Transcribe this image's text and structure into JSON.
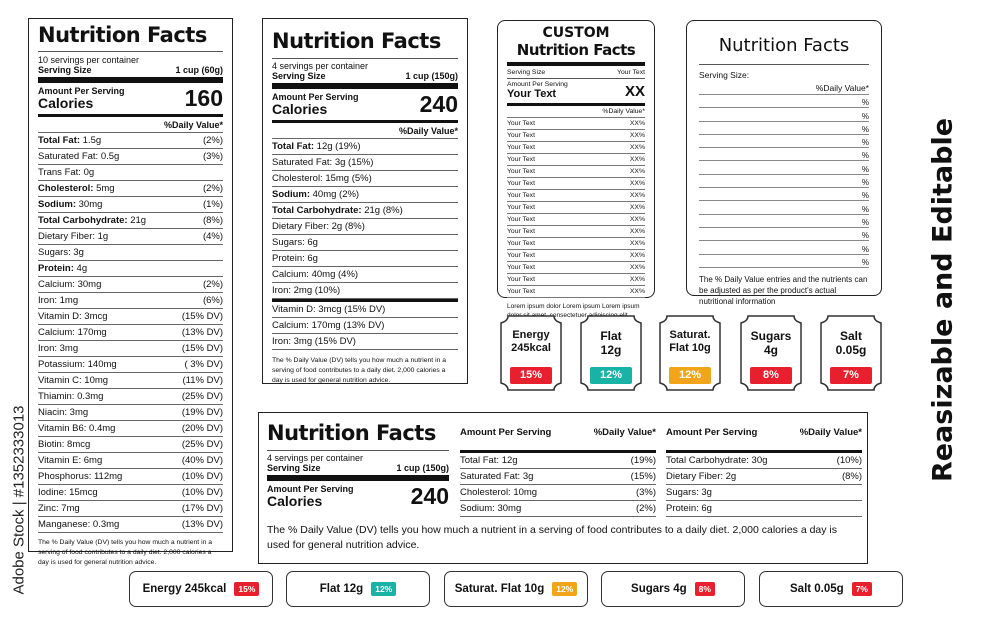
{
  "colors": {
    "red": "#e8202e",
    "teal": "#19b2a6",
    "amber": "#f2a51a"
  },
  "label1": {
    "title": "Nutrition Facts",
    "servings": "10 servings per container",
    "serving_size_label": "Serving Size",
    "serving_size_value": "1 cup (60g)",
    "amount_per_serving": "Amount Per Serving",
    "calories_label": "Calories",
    "calories_value": "160",
    "daily_value_header": "%Daily Value*",
    "rows": [
      {
        "bold": "Total Fat:",
        "text": " 1.5g",
        "dv": "(2%)"
      },
      {
        "bold": "",
        "text": "Saturated Fat: 0.5g",
        "dv": "(3%)"
      },
      {
        "bold": "",
        "text": "Trans Fat: 0g",
        "dv": ""
      },
      {
        "bold": "Cholesterol:",
        "text": " 5mg",
        "dv": "(2%)"
      },
      {
        "bold": "Sodium:",
        "text": " 30mg",
        "dv": "(1%)"
      },
      {
        "bold": "Total Carbohydrate:",
        "text": " 21g",
        "dv": "(8%)"
      },
      {
        "bold": "",
        "text": "Dietary Fiber: 1g",
        "dv": "(4%)"
      },
      {
        "bold": "",
        "text": "Sugars: 3g",
        "dv": ""
      },
      {
        "bold": "Protein:",
        "text": " 4g",
        "dv": ""
      },
      {
        "bold": "",
        "text": "Calcium: 30mg",
        "dv": "(2%)"
      },
      {
        "bold": "",
        "text": "Iron: 1mg",
        "dv": "(6%)"
      },
      {
        "bold": "",
        "text": "Vitamin D: 3mcg",
        "dv": "(15% DV)"
      },
      {
        "bold": "",
        "text": "Calcium: 170mg",
        "dv": "(13% DV)"
      },
      {
        "bold": "",
        "text": "Iron: 3mg",
        "dv": "(15% DV)"
      },
      {
        "bold": "",
        "text": "Potassium: 140mg",
        "dv": "( 3% DV)"
      },
      {
        "bold": "",
        "text": "Vitamin C: 10mg",
        "dv": "(11% DV)"
      },
      {
        "bold": "",
        "text": "Thiamin: 0.3mg",
        "dv": "(25% DV)"
      },
      {
        "bold": "",
        "text": "Niacin: 3mg",
        "dv": "(19% DV)"
      },
      {
        "bold": "",
        "text": "Vitamin B6: 0.4mg",
        "dv": "(20% DV)"
      },
      {
        "bold": "",
        "text": "Biotin: 8mcg",
        "dv": "(25% DV)"
      },
      {
        "bold": "",
        "text": "Vitamin E: 6mg",
        "dv": "(40% DV)"
      },
      {
        "bold": "",
        "text": "Phosphorus: 112mg",
        "dv": "(10% DV)"
      },
      {
        "bold": "",
        "text": "Iodine: 15mcg",
        "dv": "(10% DV)"
      },
      {
        "bold": "",
        "text": "Zinc: 7mg",
        "dv": "(17% DV)"
      },
      {
        "bold": "",
        "text": "Manganese: 0.3mg",
        "dv": "(13% DV)"
      }
    ],
    "footnote": "The % Daily Value (DV) tells you how much a nutrient in a serving of food contributes to a daily diet. 2,000 calories a day is used for general nutrition advice."
  },
  "label2": {
    "title": "Nutrition Facts",
    "servings": "4 servings per container",
    "serving_size_label": "Serving Size",
    "serving_size_value": "1 cup (150g)",
    "amount_per_serving": "Amount Per Serving",
    "calories_label": "Calories",
    "calories_value": "240",
    "daily_value_header": "%Daily Value*",
    "rows": [
      {
        "bold": "Total Fat:",
        "text": " 12g (19%)"
      },
      {
        "bold": "",
        "text": "Saturated Fat: 3g (15%)"
      },
      {
        "bold": "",
        "text": "Cholesterol: 15mg (5%)"
      },
      {
        "bold": "Sodium:",
        "text": " 40mg (2%)"
      },
      {
        "bold": "Total Carbohydrate:",
        "text": " 21g (8%)"
      },
      {
        "bold": "",
        "text": "Dietary Fiber: 2g (8%)"
      },
      {
        "bold": "",
        "text": "Sugars: 6g"
      },
      {
        "bold": "",
        "text": "Protein: 6g"
      },
      {
        "bold": "",
        "text": "Calcium: 40mg (4%)"
      },
      {
        "bold": "",
        "text": "Iron: 2mg (10%)"
      },
      {
        "bold": "",
        "text": "Vitamin D: 3mcg (15% DV)"
      },
      {
        "bold": "",
        "text": "Calcium: 170mg (13% DV)"
      },
      {
        "bold": "",
        "text": "Iron: 3mg (15% DV)"
      }
    ],
    "footnote": "The % Daily Value (DV) tells you how much a nutrient in a serving of food contributes to a daily diet. 2,000 calories a day is used for general nutrition advice."
  },
  "label3": {
    "custom": "CUSTOM",
    "title": "Nutrition Facts",
    "serving_size_label": "Serving Size",
    "serving_size_value": "Your Text",
    "amount_per_serving": "Amount Per Serving",
    "your_text_label": "Your Text",
    "your_text_value": "XX",
    "daily_value_header": "%Daily Value*",
    "rows": [
      {
        "label": "Your Text",
        "value": "XX%"
      },
      {
        "label": "Your Text",
        "value": "XX%"
      },
      {
        "label": "Your Text",
        "value": "XX%"
      },
      {
        "label": "Your Text",
        "value": "XX%"
      },
      {
        "label": "Your Text",
        "value": "XX%"
      },
      {
        "label": "Your Text",
        "value": "XX%"
      },
      {
        "label": "Your Text",
        "value": "XX%"
      },
      {
        "label": "Your Text",
        "value": "XX%"
      },
      {
        "label": "Your Text",
        "value": "XX%"
      },
      {
        "label": "Your Text",
        "value": "XX%"
      },
      {
        "label": "Your Text",
        "value": "XX%"
      },
      {
        "label": "Your Text",
        "value": "XX%"
      },
      {
        "label": "Your Text",
        "value": "XX%"
      },
      {
        "label": "Your Text",
        "value": "XX%"
      },
      {
        "label": "Your Text",
        "value": "XX%"
      }
    ],
    "footnote": "Lorem ipsum dolor Lorem ipsum Lorem ipsum dolor sit amet, consectetuer adipiscing elit,"
  },
  "label4": {
    "title": "Nutrition Facts",
    "serving_size_label": "Serving Size:",
    "daily_value_header": "%Daily Value*",
    "rows": [
      "%",
      "%",
      "%",
      "%",
      "%",
      "%",
      "%",
      "%",
      "%",
      "%",
      "%",
      "%",
      "%"
    ],
    "footnote": "The % Daily Value entries and the nutrients can be adjusted as per the product's actual nutritional information"
  },
  "badges": [
    {
      "line1": "Energy",
      "line2": "245kcal",
      "pct": "15%",
      "color": "#e8202e"
    },
    {
      "line1": "Flat",
      "line2": "12g",
      "pct": "12%",
      "color": "#19b2a6"
    },
    {
      "line1": "Saturat.",
      "line2": "Flat 10g",
      "pct": "12%",
      "color": "#f2a51a"
    },
    {
      "line1": "Sugars",
      "line2": "4g",
      "pct": "8%",
      "color": "#e8202e"
    },
    {
      "line1": "Salt",
      "line2": "0.05g",
      "pct": "7%",
      "color": "#e8202e"
    }
  ],
  "label5": {
    "title": "Nutrition Facts",
    "servings": "4 servings per container",
    "serving_size_label": "Serving Size",
    "serving_size_value": "1 cup (150g)",
    "amount_per_serving": "Amount Per Serving",
    "calories_label": "Calories",
    "calories_value": "240",
    "col2_header": "Amount Per Serving",
    "col2_dv": "%Daily Value*",
    "col2_rows": [
      {
        "text": "Total Fat: 12g",
        "dv": "(19%)"
      },
      {
        "text": "Saturated Fat: 3g",
        "dv": "(15%)"
      },
      {
        "text": "Cholesterol: 10mg",
        "dv": "(3%)"
      },
      {
        "text": "Sodium: 30mg",
        "dv": "(2%)"
      }
    ],
    "col3_header": "Amount Per Serving",
    "col3_dv": "%Daily Value*",
    "col3_rows": [
      {
        "text": "Total Carbohydrate: 30g",
        "dv": "(10%)"
      },
      {
        "text": "Dietary Fiber: 2g",
        "dv": "(8%)"
      },
      {
        "text": "Sugars: 3g",
        "dv": ""
      },
      {
        "text": "Protein: 6g",
        "dv": ""
      }
    ],
    "footnote": "The % Daily Value (DV) tells you how much a nutrient in a serving of food contributes to a daily diet. 2,000 calories a day is used for general nutrition advice."
  },
  "pills": [
    {
      "text": "Energy 245kcal",
      "pct": "15%",
      "color": "#e8202e"
    },
    {
      "text": "Flat 12g",
      "pct": "12%",
      "color": "#19b2a6"
    },
    {
      "text": "Saturat. Flat 10g",
      "pct": "12%",
      "color": "#f2a51a"
    },
    {
      "text": "Sugars 4g",
      "pct": "8%",
      "color": "#e8202e"
    },
    {
      "text": "Salt 0.05g",
      "pct": "7%",
      "color": "#e8202e"
    }
  ],
  "side_title": "Reasizable and Editable",
  "watermark": "Adobe Stock | #1352333013"
}
